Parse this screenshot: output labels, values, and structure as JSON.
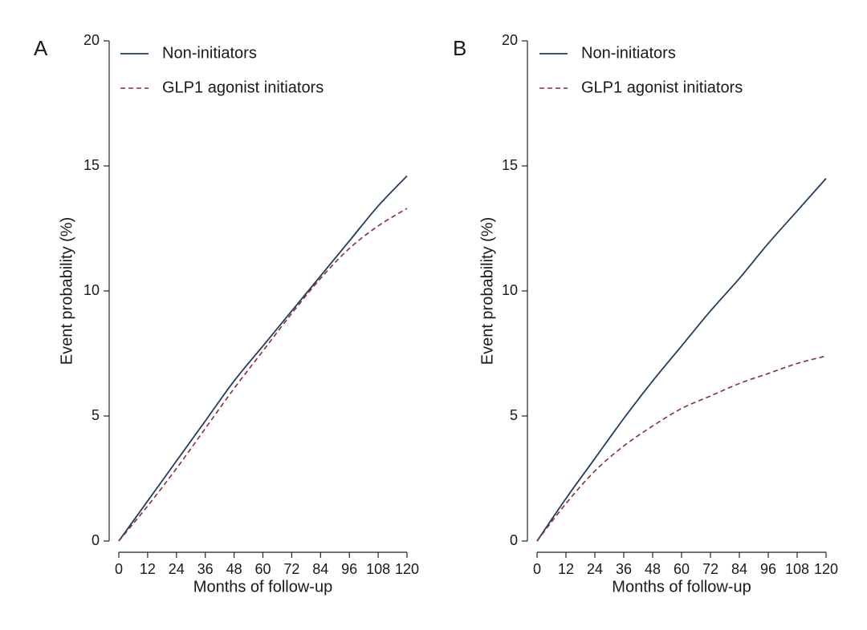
{
  "chart_data": [
    {
      "type": "line",
      "panel_label": "A",
      "xlabel": "Months of follow-up",
      "ylabel": "Event probability (%)",
      "xlim": [
        0,
        120
      ],
      "ylim": [
        0,
        20
      ],
      "xticks": [
        0,
        12,
        24,
        36,
        48,
        60,
        72,
        84,
        96,
        108,
        120
      ],
      "yticks": [
        0,
        5,
        10,
        15,
        20
      ],
      "grid": false,
      "legend_position": "top-left",
      "series": [
        {
          "name": "Non-initiators",
          "color": "#1f3f5f",
          "style": "solid",
          "x": [
            0,
            12,
            24,
            36,
            48,
            60,
            72,
            84,
            96,
            108,
            120
          ],
          "y": [
            0,
            1.6,
            3.2,
            4.8,
            6.4,
            7.8,
            9.2,
            10.6,
            12.0,
            13.4,
            14.6
          ]
        },
        {
          "name": "GLP1 agonist initiators",
          "color": "#8b2a3a",
          "style": "dashed",
          "x": [
            0,
            12,
            24,
            36,
            48,
            60,
            72,
            84,
            96,
            108,
            120
          ],
          "y": [
            0,
            1.4,
            2.9,
            4.5,
            6.1,
            7.6,
            9.1,
            10.5,
            11.7,
            12.6,
            13.3
          ]
        }
      ]
    },
    {
      "type": "line",
      "panel_label": "B",
      "xlabel": "Months of follow-up",
      "ylabel": "Event probability (%)",
      "xlim": [
        0,
        120
      ],
      "ylim": [
        0,
        20
      ],
      "xticks": [
        0,
        12,
        24,
        36,
        48,
        60,
        72,
        84,
        96,
        108,
        120
      ],
      "yticks": [
        0,
        5,
        10,
        15,
        20
      ],
      "grid": false,
      "legend_position": "top-left",
      "series": [
        {
          "name": "Non-initiators",
          "color": "#1f3f5f",
          "style": "solid",
          "x": [
            0,
            12,
            24,
            36,
            48,
            60,
            72,
            84,
            96,
            108,
            120
          ],
          "y": [
            0,
            1.7,
            3.3,
            4.9,
            6.4,
            7.8,
            9.2,
            10.5,
            11.9,
            13.2,
            14.5
          ]
        },
        {
          "name": "GLP1 agonist initiators",
          "color": "#8b2a3a",
          "style": "dashed",
          "x": [
            0,
            12,
            24,
            36,
            48,
            60,
            72,
            84,
            96,
            108,
            120
          ],
          "y": [
            0,
            1.5,
            2.8,
            3.8,
            4.6,
            5.3,
            5.8,
            6.3,
            6.7,
            7.1,
            7.4
          ]
        }
      ]
    }
  ]
}
